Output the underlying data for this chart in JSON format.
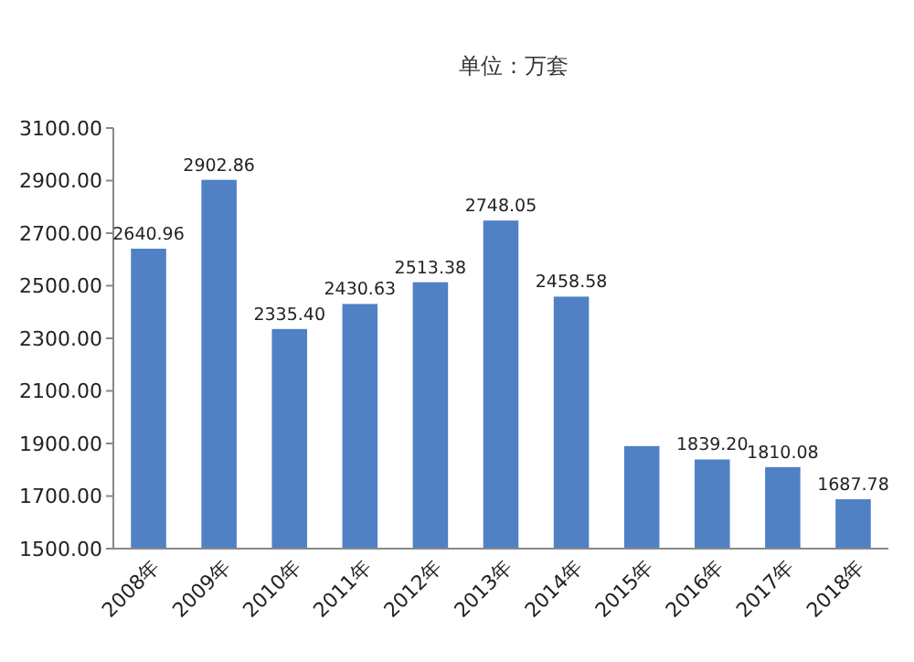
{
  "chart_data": {
    "type": "bar",
    "title": "单位：万套",
    "categories": [
      "2008年",
      "2009年",
      "2010年",
      "2011年",
      "2012年",
      "2013年",
      "2014年",
      "2015年",
      "2016年",
      "2017年",
      "2018年"
    ],
    "values": [
      2640.96,
      2902.86,
      2335.4,
      2430.63,
      2513.38,
      2748.05,
      2458.58,
      1890,
      1839.2,
      1810.08,
      1687.78
    ],
    "value_labels": [
      "2640.96",
      "2902.86",
      "2335.40",
      "2430.63",
      "2513.38",
      "2748.05",
      "2458.58",
      null,
      "1839.20",
      "1810.08",
      "1687.78"
    ],
    "color": "#4f81c4",
    "ylim": [
      1500,
      3100
    ],
    "yticks": [
      {
        "value": 1500,
        "label": "1500.00"
      },
      {
        "value": 1700,
        "label": "1700.00"
      },
      {
        "value": 1900,
        "label": "1900.00"
      },
      {
        "value": 2100,
        "label": "2100.00"
      },
      {
        "value": 2300,
        "label": "2300.00"
      },
      {
        "value": 2500,
        "label": "2500.00"
      },
      {
        "value": 2700,
        "label": "2700.00"
      },
      {
        "value": 2900,
        "label": "2900.00"
      },
      {
        "value": 3100,
        "label": "3100.00"
      }
    ],
    "grid": false
  }
}
